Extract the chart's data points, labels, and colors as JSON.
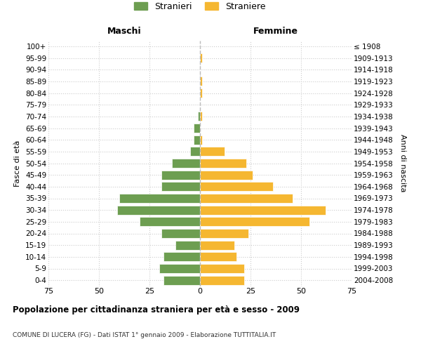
{
  "age_groups": [
    "0-4",
    "5-9",
    "10-14",
    "15-19",
    "20-24",
    "25-29",
    "30-34",
    "35-39",
    "40-44",
    "45-49",
    "50-54",
    "55-59",
    "60-64",
    "65-69",
    "70-74",
    "75-79",
    "80-84",
    "85-89",
    "90-94",
    "95-99",
    "100+"
  ],
  "birth_years": [
    "2004-2008",
    "1999-2003",
    "1994-1998",
    "1989-1993",
    "1984-1988",
    "1979-1983",
    "1974-1978",
    "1969-1973",
    "1964-1968",
    "1959-1963",
    "1954-1958",
    "1949-1953",
    "1944-1948",
    "1939-1943",
    "1934-1938",
    "1929-1933",
    "1924-1928",
    "1919-1923",
    "1914-1918",
    "1909-1913",
    "≤ 1908"
  ],
  "maschi": [
    18,
    20,
    18,
    12,
    19,
    30,
    41,
    40,
    19,
    19,
    14,
    5,
    3,
    3,
    1,
    0,
    0,
    0,
    0,
    0,
    0
  ],
  "femmine": [
    22,
    22,
    18,
    17,
    24,
    54,
    62,
    46,
    36,
    26,
    23,
    12,
    1,
    0,
    1,
    0,
    1,
    1,
    0,
    1,
    0
  ],
  "maschi_color": "#6d9e51",
  "femmine_color": "#f5b731",
  "bar_edge_color": "white",
  "bg_color": "#ffffff",
  "grid_color": "#cccccc",
  "title": "Popolazione per cittadinanza straniera per età e sesso - 2009",
  "subtitle": "COMUNE DI LUCERA (FG) - Dati ISTAT 1° gennaio 2009 - Elaborazione TUTTITALIA.IT",
  "xlabel_left": "Maschi",
  "xlabel_right": "Femmine",
  "ylabel_left": "Fasce di età",
  "ylabel_right": "Anni di nascita",
  "legend_maschi": "Stranieri",
  "legend_femmine": "Straniere",
  "xlim": 75,
  "xticks_vals": [
    -75,
    -50,
    -25,
    0,
    25,
    50,
    75
  ],
  "xticks_labels": [
    "75",
    "50",
    "25",
    "0",
    "25",
    "50",
    "75"
  ]
}
